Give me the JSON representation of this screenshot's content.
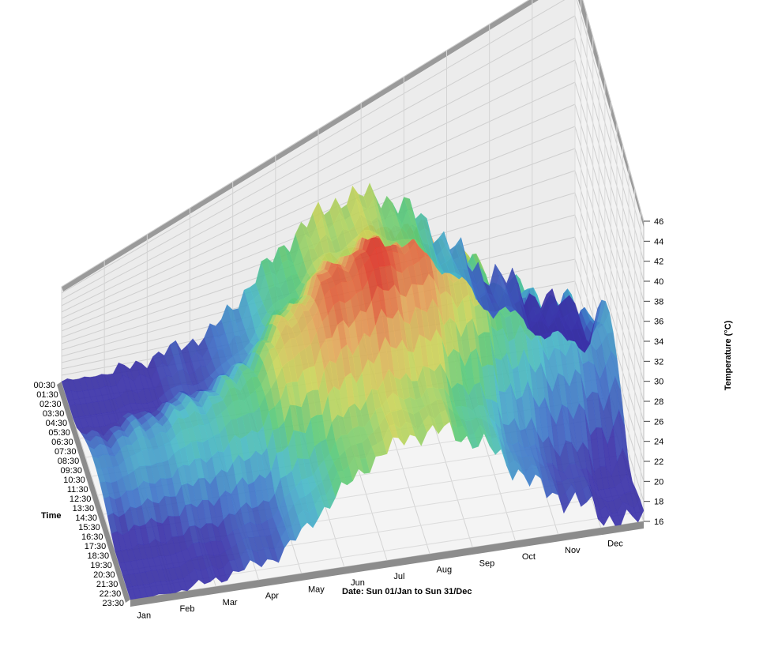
{
  "chart_data": {
    "type": "surface-3d",
    "xlabel": "Date: Sun 01/Jan to Sun 31/Dec",
    "ylabel": "Time",
    "zlabel": "Temperature (°C)",
    "x_ticks": [
      "Jan",
      "Feb",
      "Mar",
      "Apr",
      "May",
      "Jun",
      "Jul",
      "Aug",
      "Sep",
      "Oct",
      "Nov",
      "Dec"
    ],
    "y_ticks": [
      "00:30",
      "01:30",
      "02:30",
      "03:30",
      "04:30",
      "05:30",
      "06:30",
      "07:30",
      "08:30",
      "09:30",
      "10:30",
      "11:30",
      "12:30",
      "13:30",
      "14:30",
      "15:30",
      "16:30",
      "17:30",
      "18:30",
      "19:30",
      "20:30",
      "21:30",
      "22:30",
      "23:30"
    ],
    "z_ticks": [
      "16",
      "18",
      "20",
      "22",
      "24",
      "26",
      "28",
      "30",
      "32",
      "34",
      "36",
      "38",
      "40",
      "42",
      "44",
      "46"
    ],
    "zlim": [
      16,
      46
    ],
    "monthly_peak_temperature": {
      "months": [
        "Jan",
        "Feb",
        "Mar",
        "Apr",
        "May",
        "Jun",
        "Jul",
        "Aug",
        "Sep",
        "Oct",
        "Nov",
        "Dec"
      ],
      "values": [
        24,
        26,
        28,
        30,
        37,
        42,
        44,
        42,
        37,
        31,
        28,
        25
      ]
    },
    "colorscale": [
      "#3b32a8",
      "#3f74c8",
      "#49b8c8",
      "#59c97a",
      "#c9d45a",
      "#e2a45a",
      "#dc3a2a"
    ],
    "grid": true
  }
}
